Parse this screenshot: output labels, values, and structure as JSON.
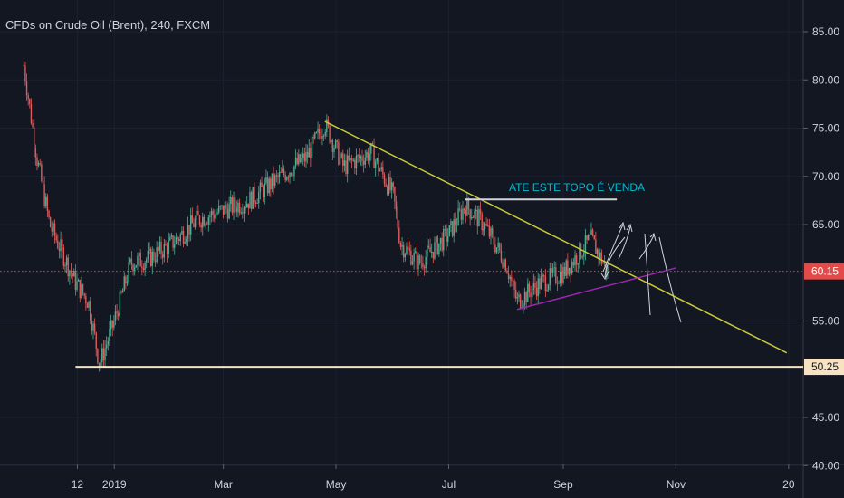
{
  "header": {
    "title": "CFDs on Crude Oil (Brent), 240, FXCM"
  },
  "colors": {
    "background": "#131722",
    "up_candle": "#4caf93",
    "down_candle": "#e05c5c",
    "trendline": "#c8c83a",
    "support_line": "#f7e2c2",
    "price_line": "#e34a4a",
    "wedge_line": "#9c27b0",
    "annotation_line": "#d1d4dc",
    "annotation_text": "#00bcd4",
    "arrows": "#d1d4dc",
    "axis_text": "#d1d4dc"
  },
  "annotations": {
    "topo_label": "ATE ESTE TOPO É VENDA"
  },
  "chart_data": {
    "type": "candlestick",
    "title": "CFDs on Crude Oil (Brent), 240, FXCM",
    "x_ticks": [
      "12",
      "2019",
      "Mar",
      "May",
      "Jul",
      "Sep",
      "Nov",
      "20"
    ],
    "y_ticks": [
      "85.00",
      "80.00",
      "75.00",
      "70.00",
      "65.00",
      "55.00",
      "45.00",
      "40.00"
    ],
    "ylim": [
      40,
      88
    ],
    "current_price": {
      "value": 60.15,
      "label": "60.15"
    },
    "support_level": {
      "value": 50.25,
      "label": "50.25"
    },
    "series": [
      {
        "x": [
          "2018-11-13",
          "2018-11-20",
          "2018-11-27",
          "2018-12-04",
          "2018-12-11",
          "2018-12-18",
          "2018-12-24",
          "2019-01-01",
          "2019-01-10",
          "2019-01-20",
          "2019-02-01",
          "2019-02-15",
          "2019-03-01",
          "2019-03-15",
          "2019-04-01",
          "2019-04-15",
          "2019-04-25",
          "2019-05-05",
          "2019-05-20",
          "2019-06-01",
          "2019-06-05",
          "2019-06-15",
          "2019-07-01",
          "2019-07-10",
          "2019-07-20",
          "2019-08-01",
          "2019-08-07",
          "2019-08-20",
          "2019-09-01",
          "2019-09-16",
          "2019-09-25"
        ],
        "y": [
          81.5,
          72,
          65,
          62,
          59,
          57,
          50.5,
          55,
          61,
          61.5,
          63,
          65.5,
          66.5,
          67.5,
          70,
          72,
          75.5,
          71,
          72.5,
          68,
          63,
          61,
          64,
          67,
          65,
          61,
          57,
          59,
          60,
          63.5,
          60.2
        ]
      }
    ],
    "trendlines": [
      {
        "name": "",
        "from": [
          "2019-04-25",
          75.7
        ],
        "to": [
          "2019-12-31",
          51.7
        ]
      },
      {
        "name": "",
        "from": [
          "2019-08-07",
          56.2
        ],
        "to": [
          "2019-11-01",
          60.5
        ]
      },
      {
        "name": "",
        "from": [
          "2019-07-10",
          67.6
        ],
        "to": [
          "2019-09-30",
          67.6
        ]
      }
    ]
  }
}
